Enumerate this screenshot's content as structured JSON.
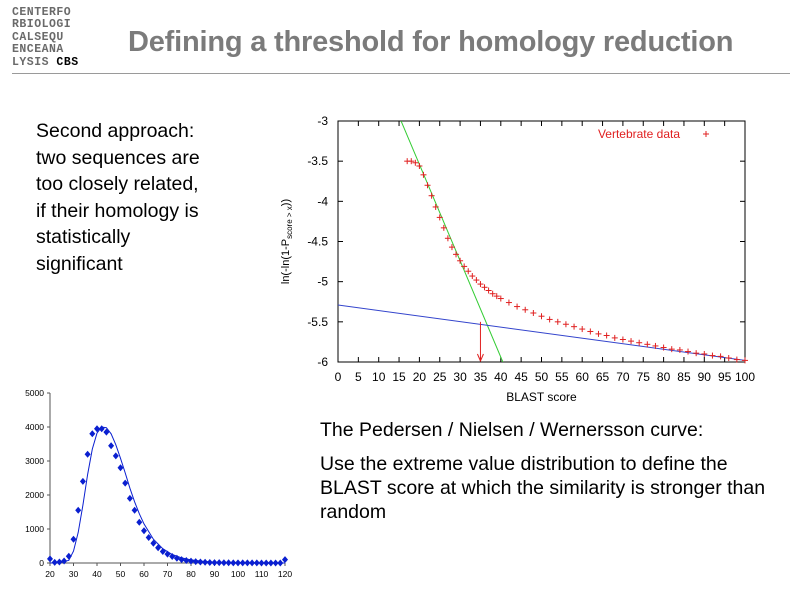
{
  "header": {
    "logo_lines": [
      "CENTERFO",
      "RBIOLOGI",
      "CALSEQU",
      "ENCEANA",
      "LYSIS"
    ],
    "logo_suffix": "CBS",
    "title": "Defining a threshold for homology reduction"
  },
  "body": {
    "left_text": "Second approach: two sequences are too closely related, if their homology is statistically significant",
    "right_heading": "The Pedersen / Nielsen / Wernersson curve:",
    "right_body": "Use the extreme value distribution to define the BLAST score at which the similarity is stronger than random"
  },
  "chart_data": [
    {
      "type": "scatter",
      "xlabel": "BLAST score",
      "ylabel": "ln(-ln(1-P_score > x))",
      "xlim": [
        0,
        100
      ],
      "ylim": [
        -6,
        -3
      ],
      "xticks": [
        0,
        5,
        10,
        15,
        20,
        25,
        30,
        35,
        40,
        45,
        50,
        55,
        60,
        65,
        70,
        75,
        80,
        85,
        90,
        95,
        100
      ],
      "yticks": [
        -3,
        -3.5,
        -4,
        -4.5,
        -5,
        -5.5,
        -6
      ],
      "legend": "top-right",
      "series": [
        {
          "name": "Vertebrate data",
          "marker": "+",
          "color": "#e02020",
          "x": [
            17,
            18,
            19,
            20,
            21,
            22,
            23,
            24,
            25,
            26,
            27,
            28,
            29,
            30,
            31,
            32,
            33,
            34,
            35,
            36,
            37,
            38,
            39,
            40,
            42,
            44,
            46,
            48,
            50,
            52,
            54,
            56,
            58,
            60,
            62,
            64,
            66,
            68,
            70,
            72,
            74,
            76,
            78,
            80,
            82,
            84,
            86,
            88,
            90,
            92,
            94,
            96,
            98,
            100
          ],
          "y": [
            -3.5,
            -3.5,
            -3.52,
            -3.56,
            -3.67,
            -3.8,
            -3.93,
            -4.07,
            -4.2,
            -4.33,
            -4.46,
            -4.57,
            -4.66,
            -4.74,
            -4.81,
            -4.87,
            -4.93,
            -4.98,
            -5.03,
            -5.07,
            -5.11,
            -5.15,
            -5.18,
            -5.21,
            -5.26,
            -5.31,
            -5.35,
            -5.39,
            -5.43,
            -5.47,
            -5.5,
            -5.53,
            -5.56,
            -5.59,
            -5.62,
            -5.65,
            -5.67,
            -5.7,
            -5.72,
            -5.74,
            -5.76,
            -5.78,
            -5.8,
            -5.82,
            -5.84,
            -5.85,
            -5.87,
            -5.89,
            -5.9,
            -5.92,
            -5.93,
            -5.95,
            -5.97,
            -5.98
          ]
        },
        {
          "name": "",
          "type": "line",
          "color": "#33cc33",
          "x": [
            15.5,
            40.5
          ],
          "y": [
            -3.0,
            -6.0
          ]
        },
        {
          "name": "",
          "type": "line",
          "color": "#3344cc",
          "x": [
            0,
            100
          ],
          "y": [
            -5.29,
            -5.98
          ]
        }
      ],
      "annotation": {
        "type": "arrow",
        "x": 35,
        "y_from": -5.5,
        "y_to": -6,
        "color": "#e02020"
      }
    },
    {
      "type": "scatter",
      "xlim": [
        20,
        120
      ],
      "ylim": [
        0,
        5000
      ],
      "xticks": [
        20,
        30,
        40,
        50,
        60,
        70,
        80,
        90,
        100,
        110,
        120
      ],
      "yticks": [
        0,
        1000,
        2000,
        3000,
        4000,
        5000
      ],
      "series": [
        {
          "name": "",
          "marker": "diamond",
          "color": "#0a1fd0",
          "x": [
            20,
            22,
            24,
            26,
            28,
            30,
            32,
            34,
            36,
            38,
            40,
            42,
            44,
            46,
            48,
            50,
            52,
            54,
            56,
            58,
            60,
            62,
            64,
            66,
            68,
            70,
            72,
            74,
            76,
            78,
            80,
            82,
            84,
            86,
            88,
            90,
            92,
            94,
            96,
            98,
            100,
            102,
            104,
            106,
            108,
            110,
            112,
            114,
            116,
            118,
            120
          ],
          "y": [
            120,
            20,
            30,
            60,
            200,
            700,
            1550,
            2400,
            3200,
            3800,
            3950,
            3950,
            3850,
            3450,
            3150,
            2800,
            2350,
            1900,
            1550,
            1200,
            950,
            750,
            580,
            450,
            340,
            260,
            190,
            140,
            100,
            75,
            55,
            40,
            30,
            22,
            15,
            12,
            10,
            8,
            6,
            5,
            4,
            3,
            3,
            2,
            2,
            1,
            1,
            1,
            1,
            1,
            100
          ]
        },
        {
          "name": "",
          "type": "line",
          "color": "#0a1fd0",
          "x": [
            20,
            24,
            28,
            30,
            32,
            34,
            36,
            38,
            40,
            42,
            44,
            46,
            48,
            50,
            52,
            54,
            56,
            58,
            60,
            64,
            68,
            72,
            76,
            80,
            85,
            90,
            100,
            110,
            120
          ],
          "y": [
            0,
            5,
            80,
            350,
            900,
            1700,
            2600,
            3350,
            3820,
            4000,
            3980,
            3800,
            3480,
            3080,
            2650,
            2200,
            1800,
            1450,
            1150,
            700,
            420,
            250,
            150,
            90,
            50,
            25,
            8,
            2,
            0
          ]
        }
      ]
    }
  ]
}
